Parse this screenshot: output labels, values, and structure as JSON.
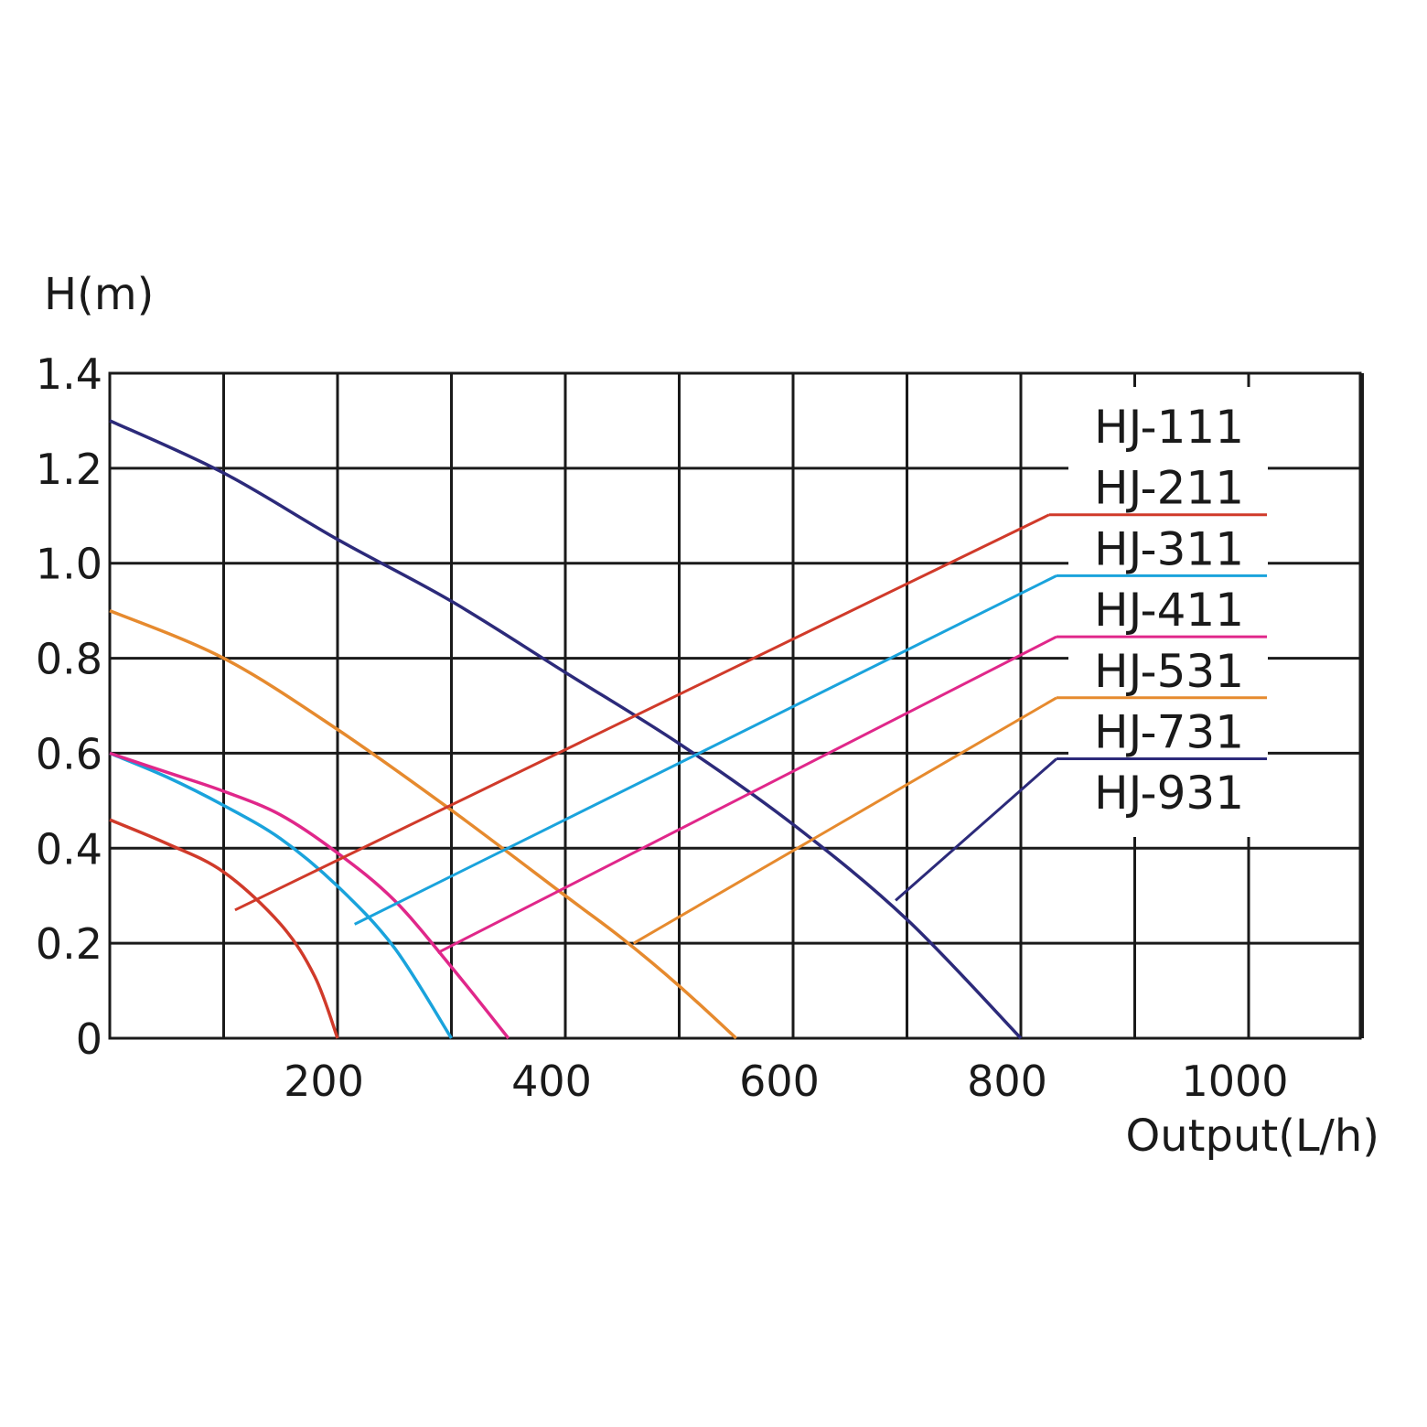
{
  "chart_data": {
    "type": "line",
    "ylabel": "H(m)",
    "xlabel": "Output(L/h)",
    "xlim": [
      0,
      1100
    ],
    "ylim": [
      0,
      1.4
    ],
    "grid": true,
    "grid_x": [
      0,
      100,
      200,
      300,
      400,
      500,
      600,
      700,
      800,
      900,
      1000,
      1100
    ],
    "grid_y": [
      0,
      0.2,
      0.4,
      0.6,
      0.8,
      1.0,
      1.2,
      1.4
    ],
    "xticks": [
      {
        "value": 200,
        "label": "200"
      },
      {
        "value": 400,
        "label": "400"
      },
      {
        "value": 600,
        "label": "600"
      },
      {
        "value": 800,
        "label": "800"
      },
      {
        "value": 1000,
        "label": "1000"
      }
    ],
    "yticks": [
      {
        "value": 1.4,
        "label": "1.4"
      },
      {
        "value": 1.2,
        "label": "1.2"
      },
      {
        "value": 1.0,
        "label": "1.0"
      },
      {
        "value": 0.8,
        "label": "0.8"
      },
      {
        "value": 0.6,
        "label": "0.6"
      },
      {
        "value": 0.4,
        "label": "0.4"
      },
      {
        "value": 0.2,
        "label": "0.2"
      },
      {
        "value": 0,
        "label": "0"
      }
    ],
    "legend_placement": "top-right",
    "series": [
      {
        "name": "HJ-111",
        "color": "#111111",
        "points": []
      },
      {
        "name": "HJ-211",
        "color": "#d03a2a",
        "points": [
          [
            0,
            0.46
          ],
          [
            50,
            0.41
          ],
          [
            100,
            0.35
          ],
          [
            150,
            0.24
          ],
          [
            180,
            0.13
          ],
          [
            200,
            0
          ]
        ],
        "leader_from": [
          110,
          0.27
        ]
      },
      {
        "name": "HJ-311",
        "color": "#1aa3dc",
        "points": [
          [
            0,
            0.6
          ],
          [
            50,
            0.55
          ],
          [
            100,
            0.49
          ],
          [
            150,
            0.42
          ],
          [
            200,
            0.32
          ],
          [
            250,
            0.19
          ],
          [
            300,
            0
          ]
        ],
        "leader_from": [
          215,
          0.24
        ]
      },
      {
        "name": "HJ-411",
        "color": "#e0278a",
        "points": [
          [
            0,
            0.6
          ],
          [
            50,
            0.56
          ],
          [
            100,
            0.52
          ],
          [
            150,
            0.47
          ],
          [
            200,
            0.39
          ],
          [
            250,
            0.29
          ],
          [
            300,
            0.15
          ],
          [
            350,
            0
          ]
        ],
        "leader_from": [
          288,
          0.18
        ]
      },
      {
        "name": "HJ-531",
        "color": "#e68a2e",
        "points": [
          [
            0,
            0.9
          ],
          [
            100,
            0.8
          ],
          [
            200,
            0.65
          ],
          [
            300,
            0.48
          ],
          [
            400,
            0.3
          ],
          [
            450,
            0.21
          ],
          [
            500,
            0.11
          ],
          [
            550,
            0
          ]
        ],
        "leader_from": [
          460,
          0.2
        ]
      },
      {
        "name": "HJ-731",
        "color": "#2c2a7a",
        "points": [
          [
            0,
            1.3
          ],
          [
            100,
            1.19
          ],
          [
            200,
            1.05
          ],
          [
            300,
            0.92
          ],
          [
            400,
            0.77
          ],
          [
            500,
            0.62
          ],
          [
            600,
            0.45
          ],
          [
            700,
            0.25
          ],
          [
            800,
            0
          ]
        ],
        "leader_from": [
          690,
          0.29
        ]
      },
      {
        "name": "HJ-931",
        "color": "#111111",
        "points": []
      }
    ]
  }
}
